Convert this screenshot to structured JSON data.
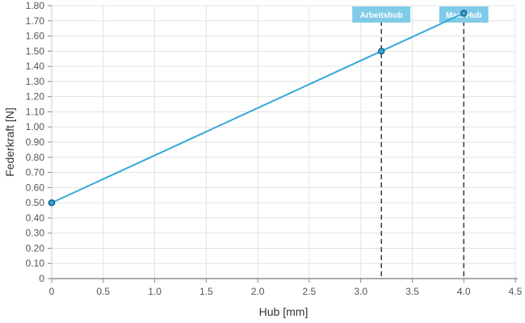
{
  "chart_data": {
    "type": "line",
    "title": "",
    "xlabel": "Hub [mm]",
    "ylabel": "Federkraft [N]",
    "xlim": [
      0,
      4.5
    ],
    "ylim": [
      0,
      1.8
    ],
    "x_ticks": [
      "0",
      "0.5",
      "1.0",
      "1.5",
      "2.0",
      "2.5",
      "3.0",
      "3.5",
      "4.0",
      "4.5"
    ],
    "y_ticks": [
      "0",
      "0.10",
      "0.20",
      "0.30",
      "0.40",
      "0.50",
      "0.60",
      "0.70",
      "0.80",
      "0.90",
      "1.00",
      "1.10",
      "1.20",
      "1.30",
      "1.40",
      "1.50",
      "1.60",
      "1.70",
      "1.80"
    ],
    "grid": true,
    "series": [
      {
        "color": "#34a8d8",
        "points": [
          {
            "x": 0,
            "y": 0.5
          },
          {
            "x": 3.2,
            "y": 1.5
          },
          {
            "x": 4.0,
            "y": 1.75
          }
        ]
      }
    ],
    "markers": [
      {
        "label": "Arbeitshub",
        "x": 3.2
      },
      {
        "label": "Max. Hub",
        "x": 4.0
      }
    ],
    "colors": {
      "line": "#34a8d8",
      "marker_label_bg": "#7fcbe8",
      "marker_line": "#444444",
      "grid": "#e3e3e3",
      "point_stroke": "#1a5f80"
    }
  }
}
